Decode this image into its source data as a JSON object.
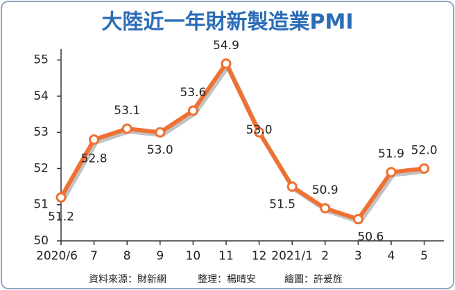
{
  "chart_data": {
    "type": "line",
    "title": "大陸近一年財新製造業PMI",
    "categories": [
      "2020/6",
      "7",
      "8",
      "9",
      "10",
      "11",
      "12",
      "2021/1",
      "2",
      "3",
      "4",
      "5"
    ],
    "series": [
      {
        "color": "#f07032",
        "values": [
          51.2,
          52.8,
          53.1,
          53.0,
          53.6,
          54.9,
          53.0,
          51.5,
          50.9,
          50.6,
          51.9,
          52.0
        ],
        "value_labels": [
          "51.2",
          "52.8",
          "53.1",
          "53.0",
          "53.6",
          "54.9",
          "53.0",
          "51.5",
          "50.9",
          "50.6",
          "51.9",
          "52.0"
        ]
      }
    ],
    "ylim": [
      50,
      55.3
    ],
    "yticks": [
      50,
      51,
      52,
      53,
      54,
      55
    ],
    "source": "資料來源：財新網",
    "editor": "整理：楊晴安",
    "artist": "繪圖：許爰旌"
  }
}
